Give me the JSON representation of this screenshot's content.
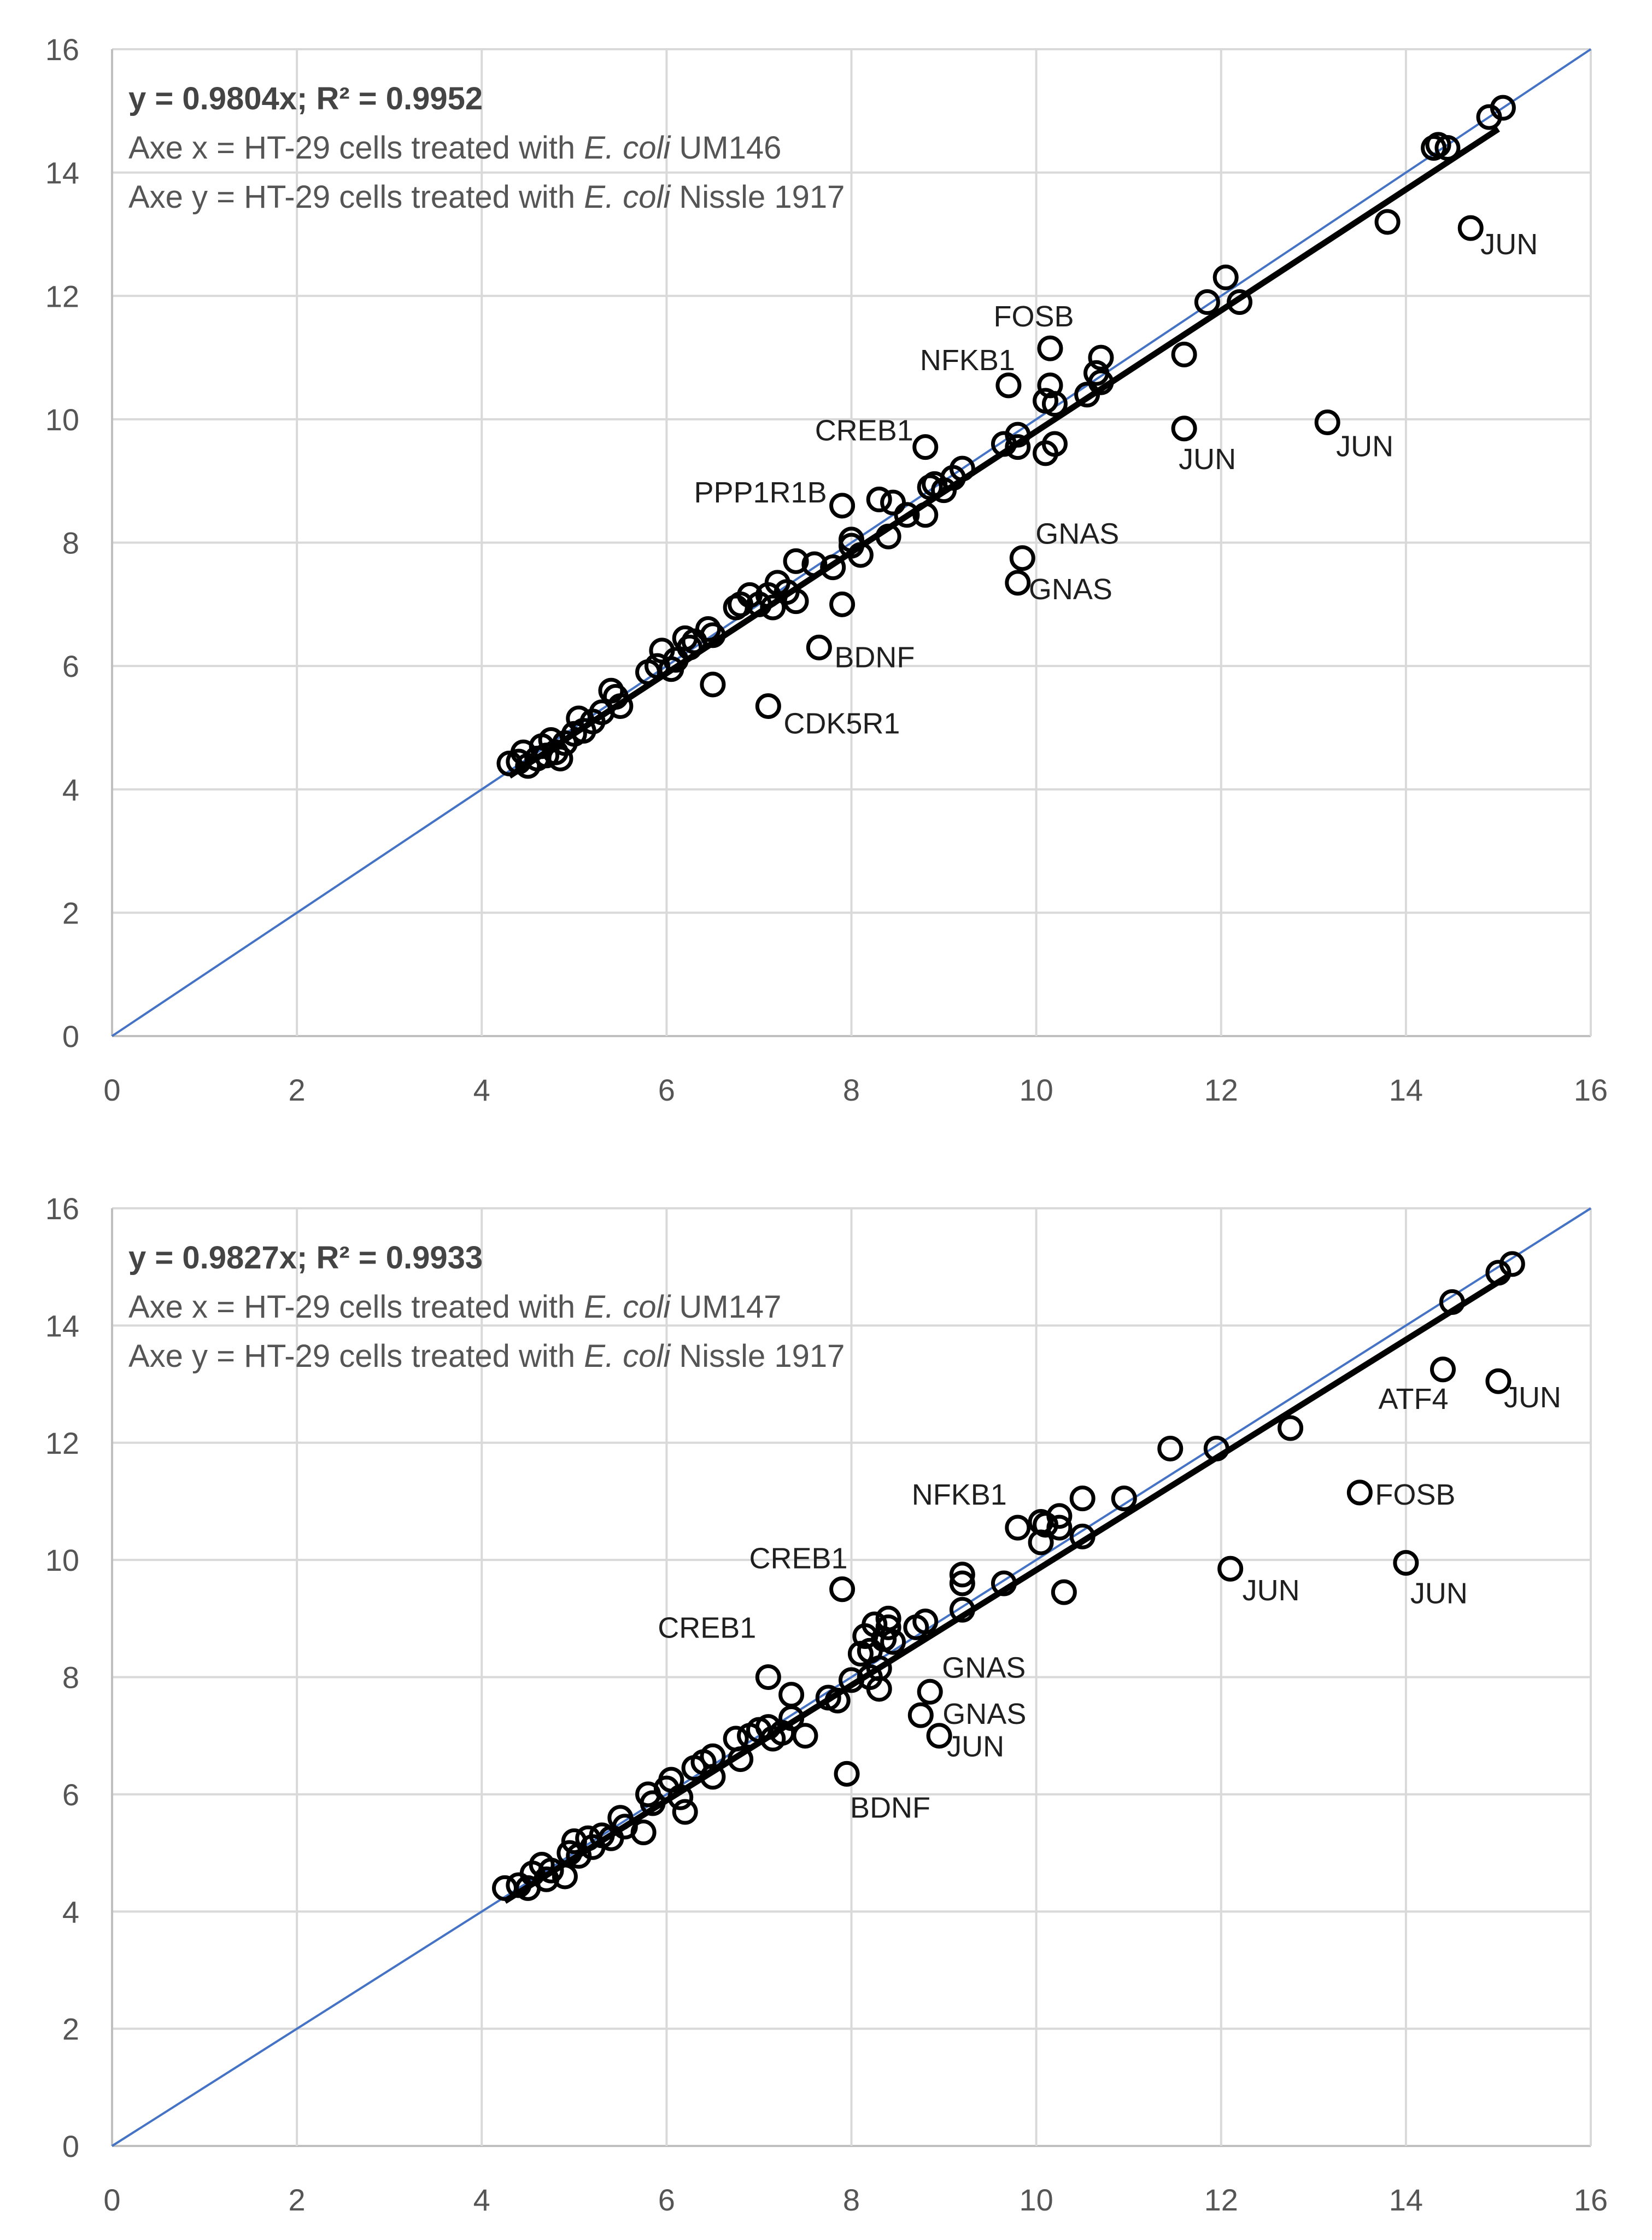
{
  "chart_data": [
    {
      "type": "scatter",
      "axes": {
        "xlim": [
          0,
          16
        ],
        "ylim": [
          0,
          16
        ],
        "xticks": [
          "0",
          "2",
          "4",
          "6",
          "8",
          "10",
          "12",
          "14",
          "16"
        ],
        "yticks": [
          "0",
          "2",
          "4",
          "6",
          "8",
          "10",
          "12",
          "14",
          "16"
        ],
        "grid": true
      },
      "equation": "y = 0.9804x; R² = 0.9952",
      "fit_slope": 0.9804,
      "fit_x_range": [
        4.3,
        15.0
      ],
      "axis_notes": {
        "x": {
          "prefix": "Axe x = HT-29 cells treated with ",
          "species": "E. coli",
          "suffix": " UM146"
        },
        "y": {
          "prefix": "Axe y = HT-29 cells treated with ",
          "species": "E. coli",
          "suffix": " Nissle 1917"
        }
      },
      "points": [
        [
          4.3,
          4.42
        ],
        [
          4.4,
          4.45
        ],
        [
          4.45,
          4.6
        ],
        [
          4.5,
          4.38
        ],
        [
          4.6,
          4.5
        ],
        [
          4.65,
          4.7
        ],
        [
          4.7,
          4.55
        ],
        [
          4.75,
          4.8
        ],
        [
          4.8,
          4.6
        ],
        [
          4.85,
          4.5
        ],
        [
          4.9,
          4.75
        ],
        [
          5.0,
          4.9
        ],
        [
          5.05,
          5.15
        ],
        [
          5.1,
          4.95
        ],
        [
          5.2,
          5.1
        ],
        [
          5.3,
          5.25
        ],
        [
          5.4,
          5.6
        ],
        [
          5.45,
          5.5
        ],
        [
          5.5,
          5.35
        ],
        [
          5.8,
          5.9
        ],
        [
          5.9,
          6.0
        ],
        [
          5.95,
          6.25
        ],
        [
          6.05,
          5.95
        ],
        [
          6.1,
          6.1
        ],
        [
          6.2,
          6.45
        ],
        [
          6.25,
          6.3
        ],
        [
          6.3,
          6.4
        ],
        [
          6.45,
          6.6
        ],
        [
          6.5,
          6.5
        ],
        [
          6.5,
          5.7
        ],
        [
          6.75,
          6.95
        ],
        [
          6.8,
          7.0
        ],
        [
          6.9,
          7.15
        ],
        [
          7.0,
          7.0
        ],
        [
          7.1,
          7.15
        ],
        [
          7.15,
          6.95
        ],
        [
          7.2,
          7.35
        ],
        [
          7.3,
          7.2
        ],
        [
          7.4,
          7.05
        ],
        [
          7.4,
          7.7
        ],
        [
          7.6,
          7.65
        ],
        [
          7.8,
          7.6
        ],
        [
          7.9,
          7.0
        ],
        [
          8.0,
          7.95
        ],
        [
          8.0,
          8.05
        ],
        [
          8.1,
          7.8
        ],
        [
          8.3,
          8.7
        ],
        [
          8.4,
          8.1
        ],
        [
          8.45,
          8.65
        ],
        [
          8.6,
          8.45
        ],
        [
          8.8,
          8.45
        ],
        [
          8.85,
          8.9
        ],
        [
          8.9,
          8.95
        ],
        [
          9.0,
          8.85
        ],
        [
          9.1,
          9.05
        ],
        [
          9.2,
          9.2
        ],
        [
          9.65,
          9.6
        ],
        [
          9.8,
          9.55
        ],
        [
          9.8,
          9.75
        ],
        [
          10.1,
          10.3
        ],
        [
          10.2,
          10.25
        ],
        [
          10.1,
          9.45
        ],
        [
          10.2,
          9.6
        ],
        [
          10.55,
          10.4
        ],
        [
          10.65,
          10.75
        ],
        [
          10.7,
          10.6
        ],
        [
          11.85,
          11.9
        ],
        [
          12.2,
          11.9
        ],
        [
          13.8,
          13.2
        ],
        [
          14.3,
          14.4
        ],
        [
          14.35,
          14.45
        ],
        [
          14.45,
          14.4
        ],
        [
          14.9,
          14.9
        ],
        [
          15.05,
          15.05
        ],
        [
          7.9,
          8.6
        ],
        [
          7.65,
          6.3
        ],
        [
          7.1,
          5.35
        ],
        [
          8.8,
          9.55
        ],
        [
          9.7,
          10.55
        ],
        [
          10.15,
          11.15
        ],
        [
          10.7,
          11.0
        ],
        [
          10.15,
          10.55
        ],
        [
          11.6,
          11.05
        ],
        [
          12.05,
          12.3
        ],
        [
          9.85,
          7.75
        ],
        [
          9.8,
          7.35
        ],
        [
          11.6,
          9.85
        ],
        [
          13.15,
          9.95
        ],
        [
          14.7,
          13.1
        ]
      ],
      "labels": [
        {
          "text": "PPP1R1B",
          "x": 7.9,
          "y": 8.6,
          "anchor": "end",
          "dx": -28,
          "dy": -6
        },
        {
          "text": "CREB1",
          "x": 8.8,
          "y": 9.55,
          "anchor": "end",
          "dx": -22,
          "dy": -12
        },
        {
          "text": "NFKB1",
          "x": 9.7,
          "y": 10.55,
          "anchor": "end",
          "dx": 12,
          "dy": -28
        },
        {
          "text": "FOSB",
          "x": 10.15,
          "y": 11.15,
          "anchor": "middle",
          "dx": -30,
          "dy": -40
        },
        {
          "text": "JUN",
          "x": 11.6,
          "y": 9.85,
          "anchor": "start",
          "dx": -10,
          "dy": 74
        },
        {
          "text": "JUN",
          "x": 13.15,
          "y": 9.95,
          "anchor": "start",
          "dx": 16,
          "dy": 62
        },
        {
          "text": "JUN",
          "x": 14.7,
          "y": 13.1,
          "anchor": "start",
          "dx": 18,
          "dy": 48
        },
        {
          "text": "GNAS",
          "x": 9.85,
          "y": 7.75,
          "anchor": "start",
          "dx": 24,
          "dy": -26
        },
        {
          "text": "GNAS",
          "x": 9.8,
          "y": 7.35,
          "anchor": "start",
          "dx": 20,
          "dy": 30
        },
        {
          "text": "BDNF",
          "x": 7.65,
          "y": 6.3,
          "anchor": "start",
          "dx": 28,
          "dy": 36
        },
        {
          "text": "CDK5R1",
          "x": 7.1,
          "y": 5.35,
          "anchor": "start",
          "dx": 28,
          "dy": 50
        }
      ]
    },
    {
      "type": "scatter",
      "axes": {
        "xlim": [
          0,
          16
        ],
        "ylim": [
          0,
          16
        ],
        "xticks": [
          "0",
          "2",
          "4",
          "6",
          "8",
          "10",
          "12",
          "14",
          "16"
        ],
        "yticks": [
          "0",
          "2",
          "4",
          "6",
          "8",
          "10",
          "12",
          "14",
          "16"
        ],
        "grid": true
      },
      "equation": "y = 0.9827x; R² = 0.9933",
      "fit_slope": 0.9827,
      "fit_x_range": [
        4.25,
        15.1
      ],
      "axis_notes": {
        "x": {
          "prefix": "Axe x = HT-29 cells treated with ",
          "species": "E. coli",
          "suffix": " UM147"
        },
        "y": {
          "prefix": "Axe y = HT-29 cells treated with ",
          "species": "E. coli",
          "suffix": " Nissle 1917"
        }
      },
      "points": [
        [
          4.25,
          4.4
        ],
        [
          4.4,
          4.45
        ],
        [
          4.5,
          4.4
        ],
        [
          4.55,
          4.65
        ],
        [
          4.65,
          4.8
        ],
        [
          4.7,
          4.55
        ],
        [
          4.75,
          4.7
        ],
        [
          4.9,
          4.6
        ],
        [
          4.95,
          5.0
        ],
        [
          5.0,
          5.2
        ],
        [
          5.05,
          4.95
        ],
        [
          5.15,
          5.25
        ],
        [
          5.2,
          5.1
        ],
        [
          5.3,
          5.3
        ],
        [
          5.4,
          5.25
        ],
        [
          5.5,
          5.6
        ],
        [
          5.55,
          5.45
        ],
        [
          5.75,
          5.35
        ],
        [
          5.8,
          6.0
        ],
        [
          5.85,
          5.85
        ],
        [
          6.0,
          6.1
        ],
        [
          6.05,
          6.25
        ],
        [
          6.15,
          5.95
        ],
        [
          6.2,
          5.7
        ],
        [
          6.3,
          6.45
        ],
        [
          6.4,
          6.55
        ],
        [
          6.5,
          6.65
        ],
        [
          6.5,
          6.3
        ],
        [
          6.75,
          6.95
        ],
        [
          6.8,
          6.6
        ],
        [
          6.9,
          7.0
        ],
        [
          7.0,
          7.1
        ],
        [
          7.1,
          7.15
        ],
        [
          7.15,
          6.95
        ],
        [
          7.25,
          7.05
        ],
        [
          7.35,
          7.3
        ],
        [
          7.5,
          7.0
        ],
        [
          7.75,
          7.65
        ],
        [
          7.85,
          7.6
        ],
        [
          8.0,
          7.95
        ],
        [
          8.1,
          8.4
        ],
        [
          8.15,
          8.7
        ],
        [
          8.2,
          8.0
        ],
        [
          8.25,
          8.9
        ],
        [
          8.3,
          8.15
        ],
        [
          8.35,
          8.65
        ],
        [
          8.4,
          9.0
        ],
        [
          8.4,
          8.85
        ],
        [
          8.45,
          8.6
        ],
        [
          8.7,
          8.85
        ],
        [
          8.8,
          8.95
        ],
        [
          9.2,
          9.15
        ],
        [
          9.2,
          9.6
        ],
        [
          9.65,
          9.6
        ],
        [
          10.05,
          10.3
        ],
        [
          10.1,
          10.6
        ],
        [
          10.25,
          10.55
        ],
        [
          10.3,
          9.45
        ],
        [
          10.5,
          10.4
        ],
        [
          10.95,
          11.05
        ],
        [
          11.95,
          11.9
        ],
        [
          14.5,
          14.4
        ],
        [
          15.0,
          14.9
        ],
        [
          15.15,
          15.05
        ],
        [
          7.35,
          7.7
        ],
        [
          8.3,
          7.8
        ],
        [
          8.2,
          8.45
        ],
        [
          7.1,
          8.0
        ],
        [
          7.9,
          9.5
        ],
        [
          7.95,
          6.35
        ],
        [
          9.8,
          10.55
        ],
        [
          10.05,
          10.65
        ],
        [
          10.25,
          10.75
        ],
        [
          10.5,
          11.05
        ],
        [
          11.45,
          11.9
        ],
        [
          12.75,
          12.25
        ],
        [
          9.2,
          9.75
        ],
        [
          8.85,
          7.75
        ],
        [
          8.75,
          7.35
        ],
        [
          8.95,
          7.0
        ],
        [
          12.1,
          9.85
        ],
        [
          14.0,
          9.95
        ],
        [
          13.5,
          11.15
        ],
        [
          14.4,
          13.25
        ],
        [
          15.0,
          13.05
        ]
      ],
      "labels": [
        {
          "text": "CREB1",
          "x": 7.1,
          "y": 8.0,
          "anchor": "end",
          "dx": -22,
          "dy": -72
        },
        {
          "text": "CREB1",
          "x": 7.9,
          "y": 9.5,
          "anchor": "end",
          "dx": 10,
          "dy": -38
        },
        {
          "text": "NFKB1",
          "x": 9.8,
          "y": 10.55,
          "anchor": "end",
          "dx": -20,
          "dy": -42
        },
        {
          "text": "FOSB",
          "x": 13.5,
          "y": 11.15,
          "anchor": "start",
          "dx": 28,
          "dy": 22
        },
        {
          "text": "ATF4",
          "x": 14.4,
          "y": 13.25,
          "anchor": "end",
          "dx": 10,
          "dy": 72
        },
        {
          "text": "JUN",
          "x": 15.0,
          "y": 13.05,
          "anchor": "start",
          "dx": 10,
          "dy": 48
        },
        {
          "text": "JUN",
          "x": 12.1,
          "y": 9.85,
          "anchor": "start",
          "dx": 22,
          "dy": 58
        },
        {
          "text": "JUN",
          "x": 14.0,
          "y": 9.95,
          "anchor": "start",
          "dx": 8,
          "dy": 74
        },
        {
          "text": "GNAS",
          "x": 8.85,
          "y": 7.75,
          "anchor": "start",
          "dx": 22,
          "dy": -26
        },
        {
          "text": "GNAS",
          "x": 8.75,
          "y": 7.35,
          "anchor": "start",
          "dx": 40,
          "dy": 16
        },
        {
          "text": "JUN",
          "x": 8.95,
          "y": 7.0,
          "anchor": "start",
          "dx": 14,
          "dy": 38
        },
        {
          "text": "BDNF",
          "x": 7.95,
          "y": 6.35,
          "anchor": "start",
          "dx": 6,
          "dy": 80
        }
      ]
    }
  ]
}
